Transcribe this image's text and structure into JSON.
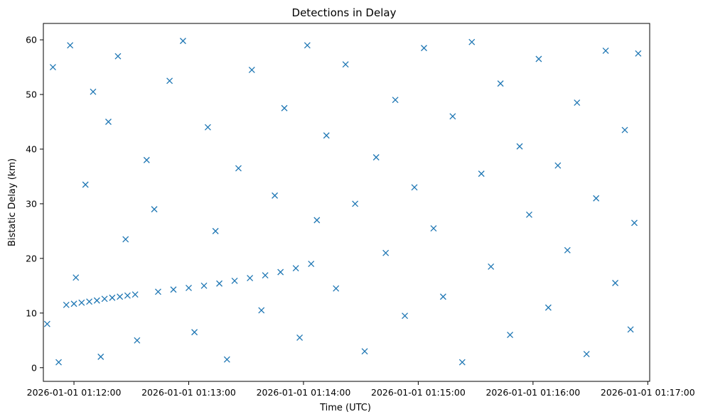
{
  "chart_data": {
    "type": "scatter",
    "title": "Detections in Delay",
    "xlabel": "Time (UTC)",
    "ylabel": "Bistatic Delay (km)",
    "marker": "x",
    "color": "#1f77b4",
    "grid": false,
    "xlim": [
      "2026-01-01 01:11:44",
      "2026-01-01 01:17:01"
    ],
    "ylim": [
      -2.5,
      63
    ],
    "x_tick_labels": [
      "2026-01-01 01:12:00",
      "2026-01-01 01:13:00",
      "2026-01-01 01:14:00",
      "2026-01-01 01:15:00",
      "2026-01-01 01:16:00",
      "2026-01-01 01:17:00"
    ],
    "y_tick_labels": [
      "0",
      "10",
      "20",
      "30",
      "40",
      "50",
      "60"
    ],
    "series": [
      {
        "values": [
          [
            "2026-01-01 01:11:56",
            11.5
          ],
          [
            "2026-01-01 01:12:00",
            11.7
          ],
          [
            "2026-01-01 01:12:04",
            11.9
          ],
          [
            "2026-01-01 01:12:08",
            12.1
          ],
          [
            "2026-01-01 01:12:12",
            12.3
          ],
          [
            "2026-01-01 01:12:16",
            12.6
          ],
          [
            "2026-01-01 01:12:20",
            12.8
          ],
          [
            "2026-01-01 01:12:24",
            13.0
          ],
          [
            "2026-01-01 01:12:28",
            13.2
          ],
          [
            "2026-01-01 01:12:32",
            13.4
          ],
          [
            "2026-01-01 01:12:44",
            13.9
          ],
          [
            "2026-01-01 01:12:52",
            14.3
          ],
          [
            "2026-01-01 01:13:00",
            14.6
          ],
          [
            "2026-01-01 01:13:08",
            15.0
          ],
          [
            "2026-01-01 01:13:16",
            15.4
          ],
          [
            "2026-01-01 01:13:24",
            15.9
          ],
          [
            "2026-01-01 01:13:32",
            16.4
          ],
          [
            "2026-01-01 01:13:40",
            16.9
          ],
          [
            "2026-01-01 01:13:48",
            17.5
          ],
          [
            "2026-01-01 01:13:56",
            18.2
          ],
          [
            "2026-01-01 01:14:04",
            19.0
          ],
          [
            "2026-01-01 01:11:46",
            8.0
          ],
          [
            "2026-01-01 01:11:49",
            55.0
          ],
          [
            "2026-01-01 01:11:52",
            1.0
          ],
          [
            "2026-01-01 01:11:58",
            59.0
          ],
          [
            "2026-01-01 01:12:01",
            16.5
          ],
          [
            "2026-01-01 01:12:06",
            33.5
          ],
          [
            "2026-01-01 01:12:10",
            50.5
          ],
          [
            "2026-01-01 01:12:14",
            2.0
          ],
          [
            "2026-01-01 01:12:18",
            45.0
          ],
          [
            "2026-01-01 01:12:23",
            57.0
          ],
          [
            "2026-01-01 01:12:27",
            23.5
          ],
          [
            "2026-01-01 01:12:33",
            5.0
          ],
          [
            "2026-01-01 01:12:38",
            38.0
          ],
          [
            "2026-01-01 01:12:42",
            29.0
          ],
          [
            "2026-01-01 01:12:50",
            52.5
          ],
          [
            "2026-01-01 01:12:57",
            59.8
          ],
          [
            "2026-01-01 01:13:03",
            6.5
          ],
          [
            "2026-01-01 01:13:10",
            44.0
          ],
          [
            "2026-01-01 01:13:14",
            25.0
          ],
          [
            "2026-01-01 01:13:20",
            1.5
          ],
          [
            "2026-01-01 01:13:26",
            36.5
          ],
          [
            "2026-01-01 01:13:33",
            54.5
          ],
          [
            "2026-01-01 01:13:38",
            10.5
          ],
          [
            "2026-01-01 01:13:45",
            31.5
          ],
          [
            "2026-01-01 01:13:50",
            47.5
          ],
          [
            "2026-01-01 01:13:58",
            5.5
          ],
          [
            "2026-01-01 01:14:02",
            59.0
          ],
          [
            "2026-01-01 01:14:07",
            27.0
          ],
          [
            "2026-01-01 01:14:12",
            42.5
          ],
          [
            "2026-01-01 01:14:17",
            14.5
          ],
          [
            "2026-01-01 01:14:22",
            55.5
          ],
          [
            "2026-01-01 01:14:27",
            30.0
          ],
          [
            "2026-01-01 01:14:32",
            3.0
          ],
          [
            "2026-01-01 01:14:38",
            38.5
          ],
          [
            "2026-01-01 01:14:43",
            21.0
          ],
          [
            "2026-01-01 01:14:48",
            49.0
          ],
          [
            "2026-01-01 01:14:53",
            9.5
          ],
          [
            "2026-01-01 01:14:58",
            33.0
          ],
          [
            "2026-01-01 01:15:03",
            58.5
          ],
          [
            "2026-01-01 01:15:08",
            25.5
          ],
          [
            "2026-01-01 01:15:13",
            13.0
          ],
          [
            "2026-01-01 01:15:18",
            46.0
          ],
          [
            "2026-01-01 01:15:23",
            1.0
          ],
          [
            "2026-01-01 01:15:28",
            59.6
          ],
          [
            "2026-01-01 01:15:33",
            35.5
          ],
          [
            "2026-01-01 01:15:38",
            18.5
          ],
          [
            "2026-01-01 01:15:43",
            52.0
          ],
          [
            "2026-01-01 01:15:48",
            6.0
          ],
          [
            "2026-01-01 01:15:53",
            40.5
          ],
          [
            "2026-01-01 01:15:58",
            28.0
          ],
          [
            "2026-01-01 01:16:03",
            56.5
          ],
          [
            "2026-01-01 01:16:08",
            11.0
          ],
          [
            "2026-01-01 01:16:13",
            37.0
          ],
          [
            "2026-01-01 01:16:18",
            21.5
          ],
          [
            "2026-01-01 01:16:23",
            48.5
          ],
          [
            "2026-01-01 01:16:28",
            2.5
          ],
          [
            "2026-01-01 01:16:33",
            31.0
          ],
          [
            "2026-01-01 01:16:38",
            58.0
          ],
          [
            "2026-01-01 01:16:43",
            15.5
          ],
          [
            "2026-01-01 01:16:48",
            43.5
          ],
          [
            "2026-01-01 01:16:51",
            7.0
          ],
          [
            "2026-01-01 01:16:53",
            26.5
          ],
          [
            "2026-01-01 01:16:55",
            57.5
          ]
        ]
      }
    ]
  }
}
